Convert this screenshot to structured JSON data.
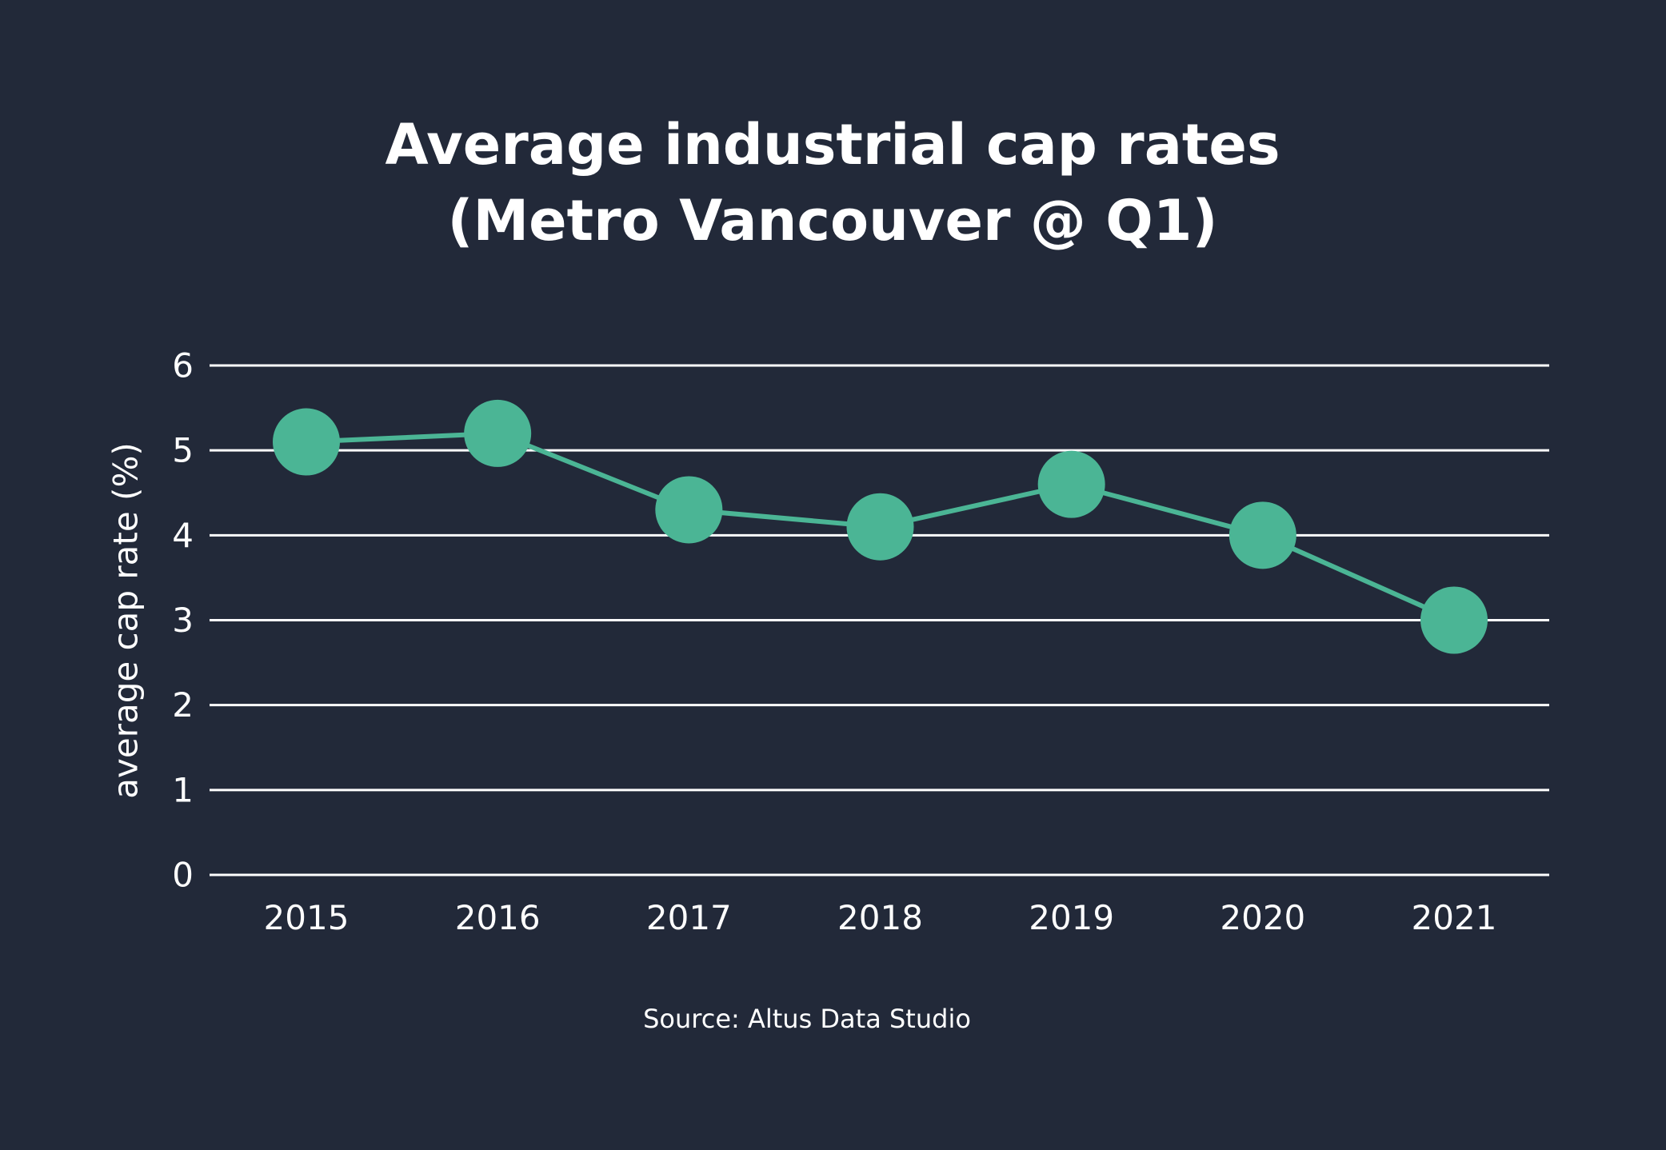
{
  "colors": {
    "background": "#222939",
    "gridline": "#ffffff",
    "series": "#4bb595",
    "text": "#ffffff"
  },
  "chart_data": {
    "type": "line",
    "title": [
      "Average industrial cap rates",
      "(Metro Vancouver @ Q1)"
    ],
    "xlabel": "",
    "ylabel": "average cap rate (%)",
    "source": "Source: Altus Data Studio",
    "categories": [
      "2015",
      "2016",
      "2017",
      "2018",
      "2019",
      "2020",
      "2021"
    ],
    "series": [
      {
        "values": [
          5.1,
          5.2,
          4.3,
          4.1,
          4.6,
          4.0,
          3.0
        ]
      }
    ],
    "ylim": [
      0,
      6
    ],
    "yticks": [
      "0",
      "1",
      "2",
      "3",
      "4",
      "5",
      "6"
    ],
    "grid": true,
    "markers": "filled circles"
  }
}
